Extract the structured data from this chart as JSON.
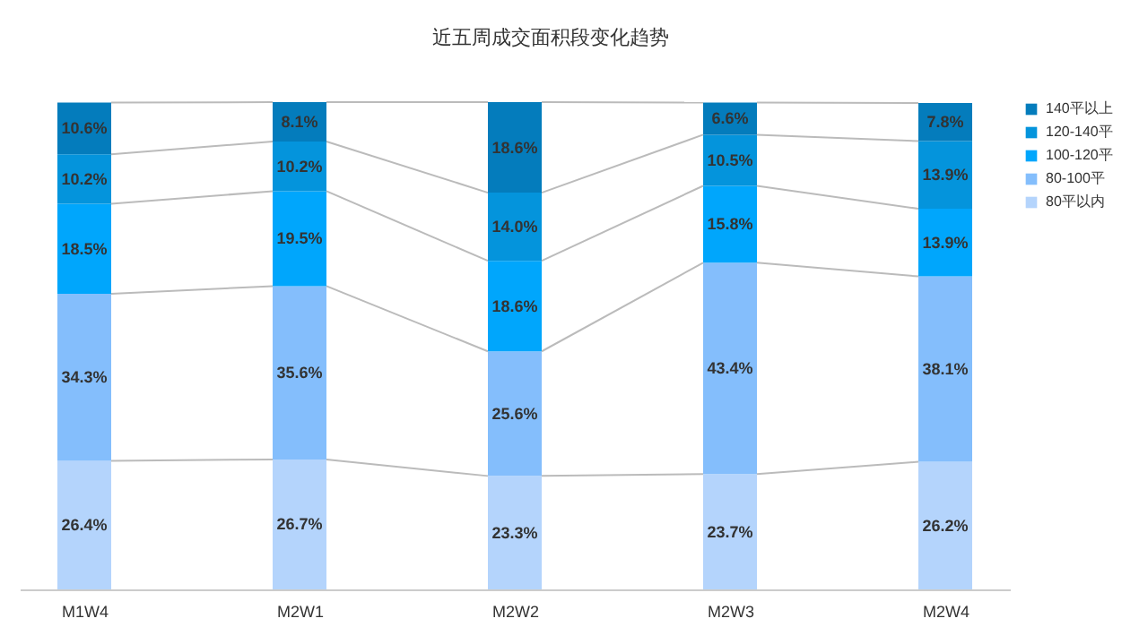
{
  "chart_data": {
    "type": "bar",
    "stacked": true,
    "title": "近五周成交面积段变化趋势",
    "legend": "right",
    "categories": [
      "M1W4",
      "M2W1",
      "M2W2",
      "M2W3",
      "M2W4"
    ],
    "series": [
      {
        "name": "80平以内",
        "color": "#b4d4fc",
        "values": [
          26.4,
          26.7,
          23.3,
          23.7,
          26.2
        ],
        "value_labels": [
          "26.4%",
          "26.7%",
          "23.3%",
          "23.7%",
          "26.2%"
        ]
      },
      {
        "name": "80-100平",
        "color": "#84befc",
        "values": [
          34.3,
          35.6,
          25.6,
          43.4,
          38.1
        ],
        "value_labels": [
          "34.3%",
          "35.6%",
          "25.6%",
          "43.4%",
          "38.1%"
        ]
      },
      {
        "name": "100-120平",
        "color": "#00a6fc",
        "values": [
          18.5,
          19.5,
          18.6,
          15.8,
          13.9
        ],
        "value_labels": [
          "18.5%",
          "19.5%",
          "18.6%",
          "15.8%",
          "13.9%"
        ]
      },
      {
        "name": "120-140平",
        "color": "#0494dc",
        "values": [
          10.2,
          10.2,
          14.0,
          10.5,
          13.9
        ],
        "value_labels": [
          "10.2%",
          "10.2%",
          "14.0%",
          "10.5%",
          "13.9%"
        ]
      },
      {
        "name": "140平以上",
        "color": "#047cbc",
        "values": [
          10.6,
          8.1,
          18.6,
          6.6,
          7.8
        ],
        "value_labels": [
          "10.6%",
          "8.1%",
          "18.6%",
          "6.6%",
          "7.8%"
        ]
      }
    ]
  }
}
